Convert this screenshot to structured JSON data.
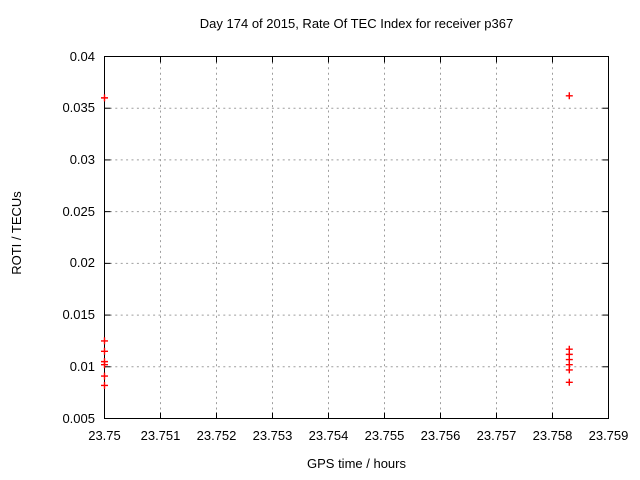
{
  "chart_data": {
    "type": "scatter",
    "title": "Day 174 of 2015, Rate Of TEC Index for receiver p367",
    "xlabel": "GPS time / hours",
    "ylabel": "ROTI / TECUs",
    "xlim": [
      23.75,
      23.759
    ],
    "ylim": [
      0.005,
      0.04
    ],
    "x_tick_values": [
      23.75,
      23.751,
      23.752,
      23.753,
      23.754,
      23.755,
      23.756,
      23.757,
      23.758,
      23.759
    ],
    "x_tick_labels": [
      "23.75",
      "23.751",
      "23.752",
      "23.753",
      "23.754",
      "23.755",
      "23.756",
      "23.757",
      "23.758",
      "23.759"
    ],
    "y_tick_values": [
      0.005,
      0.01,
      0.015,
      0.02,
      0.025,
      0.03,
      0.035,
      0.04
    ],
    "y_tick_labels": [
      "0.005",
      "0.01",
      "0.015",
      "0.02",
      "0.025",
      "0.03",
      "0.035",
      "0.04"
    ],
    "grid": true,
    "legend": "none",
    "marker": "plus",
    "colors": {
      "marker": "#ff0000",
      "grid": "#9e9e9e",
      "border": "#000000",
      "text": "#000000",
      "background": "#ffffff"
    },
    "series": [
      {
        "name": "ROTI",
        "points": [
          [
            23.75,
            0.036
          ],
          [
            23.75,
            0.0125
          ],
          [
            23.75,
            0.0115
          ],
          [
            23.75,
            0.0105
          ],
          [
            23.75,
            0.0102
          ],
          [
            23.75,
            0.0091
          ],
          [
            23.75,
            0.0082
          ],
          [
            23.7583,
            0.0362
          ],
          [
            23.7583,
            0.0117
          ],
          [
            23.7583,
            0.0112
          ],
          [
            23.7583,
            0.0107
          ],
          [
            23.7583,
            0.0102
          ],
          [
            23.7583,
            0.0097
          ],
          [
            23.7583,
            0.0085
          ]
        ]
      }
    ]
  }
}
